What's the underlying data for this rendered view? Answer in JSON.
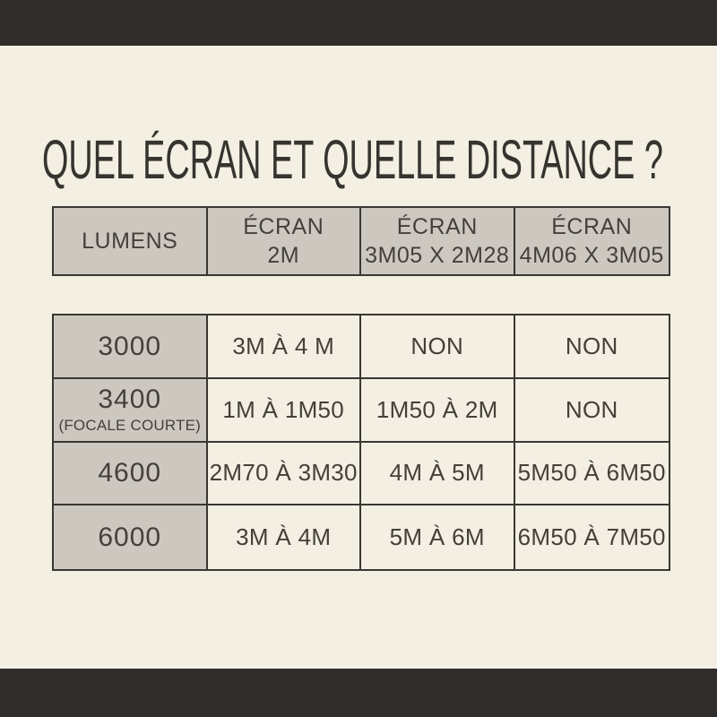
{
  "title": "QUEL ÉCRAN ET QUELLE DISTANCE ?",
  "colors": {
    "frame": "#302d2b",
    "background": "#f4efe3",
    "cell_gray": "#cdc8bf",
    "border": "#3a3633",
    "text": "#443f39"
  },
  "header_table": {
    "columns": [
      {
        "line1": "LUMENS",
        "line2": ""
      },
      {
        "line1": "ÉCRAN",
        "line2": "2M"
      },
      {
        "line1": "ÉCRAN",
        "line2": "3M05 X 2M28"
      },
      {
        "line1": "ÉCRAN",
        "line2": "4M06 X 3M05"
      }
    ]
  },
  "chart_data": {
    "type": "table",
    "title": "QUEL ÉCRAN ET QUELLE DISTANCE ?",
    "columns": [
      "LUMENS",
      "ÉCRAN 2M",
      "ÉCRAN 3M05 X 2M28",
      "ÉCRAN 4M06 X 3M05"
    ],
    "rows": [
      {
        "lumens": "3000",
        "note": "",
        "cells": [
          "3M À 4 M",
          "NON",
          "NON"
        ]
      },
      {
        "lumens": "3400",
        "note": "(FOCALE COURTE)",
        "cells": [
          "1M À 1M50",
          "1M50 À 2M",
          "NON"
        ]
      },
      {
        "lumens": "4600",
        "note": "",
        "cells": [
          "2M70 À 3M30",
          "4M À 5M",
          "5M50 À 6M50"
        ]
      },
      {
        "lumens": "6000",
        "note": "",
        "cells": [
          "3M À 4M",
          "5M À 6M",
          "6M50 À 7M50"
        ]
      }
    ]
  }
}
